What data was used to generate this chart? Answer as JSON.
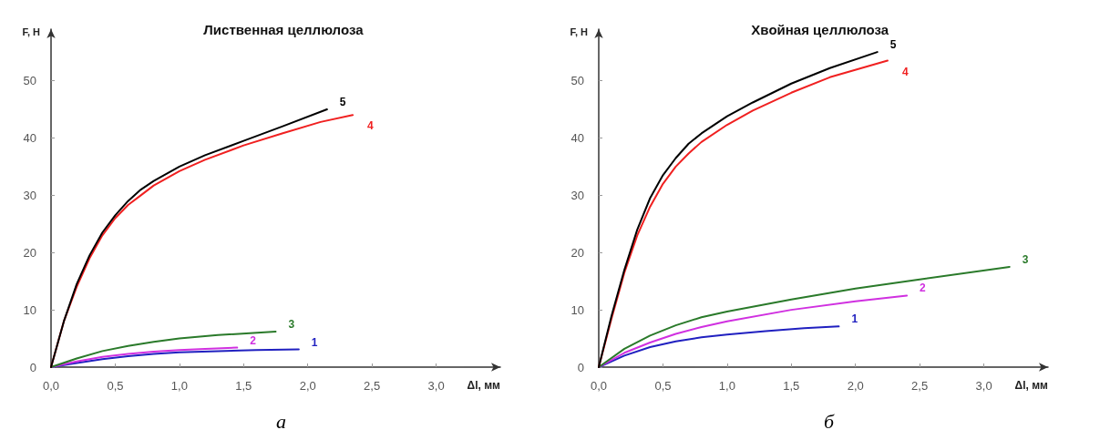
{
  "chart_data": [
    {
      "type": "line",
      "title": "Лиственная целлюлоза",
      "xlabel": "Δl, мм",
      "ylabel": "F, Н",
      "annotations": [
        "а"
      ],
      "xlim": [
        0,
        3.5
      ],
      "ylim": [
        0,
        59
      ],
      "xticks": [
        {
          "value": 0,
          "label": "0,0"
        },
        {
          "value": 0.5,
          "label": "0,5"
        },
        {
          "value": 1,
          "label": "1,0"
        },
        {
          "value": 1.5,
          "label": "1,5"
        },
        {
          "value": 2,
          "label": "2,0"
        },
        {
          "value": 2.5,
          "label": "2,5"
        },
        {
          "value": 3,
          "label": "3,0"
        }
      ],
      "yticks": [
        0,
        10,
        20,
        30,
        40,
        50
      ],
      "grid": false,
      "marker": "none",
      "line_style": "solid",
      "series": [
        {
          "name": "1",
          "color": "#2020c0",
          "x": [
            0,
            0.2,
            0.4,
            0.6,
            0.8,
            1.0,
            1.3,
            1.6,
            1.93
          ],
          "values": [
            0,
            0.7,
            1.4,
            1.9,
            2.3,
            2.6,
            2.8,
            3,
            3.1
          ]
        },
        {
          "name": "2",
          "color": "#d030e0",
          "x": [
            0,
            0.2,
            0.4,
            0.6,
            0.8,
            1.0,
            1.2,
            1.45
          ],
          "values": [
            0,
            1,
            1.8,
            2.3,
            2.7,
            3,
            3.2,
            3.4
          ]
        },
        {
          "name": "3",
          "color": "#2a7a2a",
          "x": [
            0,
            0.2,
            0.4,
            0.6,
            0.8,
            1.0,
            1.3,
            1.75
          ],
          "values": [
            0,
            1.5,
            2.8,
            3.7,
            4.4,
            5,
            5.6,
            6.2
          ]
        },
        {
          "name": "4",
          "color": "#f02020",
          "x": [
            0,
            0.1,
            0.2,
            0.3,
            0.4,
            0.5,
            0.6,
            0.7,
            0.8,
            1.0,
            1.2,
            1.5,
            1.8,
            2.1,
            2.35
          ],
          "values": [
            0,
            8,
            14,
            19,
            23,
            26,
            28.3,
            30,
            31.7,
            34.2,
            36.2,
            38.7,
            40.8,
            42.8,
            44
          ]
        },
        {
          "name": "5",
          "color": "#000000",
          "x": [
            0,
            0.1,
            0.2,
            0.3,
            0.4,
            0.5,
            0.6,
            0.7,
            0.8,
            1.0,
            1.2,
            1.5,
            1.8,
            2.15
          ],
          "values": [
            0,
            8,
            14.5,
            19.5,
            23.5,
            26.5,
            29,
            31,
            32.5,
            35,
            37,
            39.5,
            42,
            45
          ]
        }
      ]
    },
    {
      "type": "line",
      "title": "Хвойная целлюлоза",
      "xlabel": "Δl, мм",
      "ylabel": "F, Н",
      "annotations": [
        "б"
      ],
      "xlim": [
        0,
        3.5
      ],
      "ylim": [
        0,
        59
      ],
      "xticks": [
        {
          "value": 0,
          "label": "0,0"
        },
        {
          "value": 0.5,
          "label": "0,5"
        },
        {
          "value": 1,
          "label": "1,0"
        },
        {
          "value": 1.5,
          "label": "1,5"
        },
        {
          "value": 2,
          "label": "2,0"
        },
        {
          "value": 2.5,
          "label": "2,5"
        },
        {
          "value": 3,
          "label": "3,0"
        }
      ],
      "yticks": [
        0,
        10,
        20,
        30,
        40,
        50
      ],
      "grid": false,
      "marker": "none",
      "line_style": "solid",
      "series": [
        {
          "name": "1",
          "color": "#2020c0",
          "x": [
            0,
            0.2,
            0.4,
            0.6,
            0.8,
            1.0,
            1.3,
            1.6,
            1.87
          ],
          "values": [
            0,
            2,
            3.5,
            4.5,
            5.2,
            5.7,
            6.3,
            6.8,
            7.1
          ]
        },
        {
          "name": "2",
          "color": "#d030e0",
          "x": [
            0,
            0.2,
            0.4,
            0.6,
            0.8,
            1.0,
            1.5,
            2.0,
            2.4
          ],
          "values": [
            0,
            2.5,
            4.3,
            5.8,
            7,
            8,
            10,
            11.5,
            12.5
          ]
        },
        {
          "name": "3",
          "color": "#2a7a2a",
          "x": [
            0,
            0.2,
            0.4,
            0.6,
            0.8,
            1.0,
            1.5,
            2.0,
            2.5,
            3.2
          ],
          "values": [
            0,
            3.2,
            5.5,
            7.3,
            8.7,
            9.7,
            11.8,
            13.7,
            15.3,
            17.5
          ]
        },
        {
          "name": "4",
          "color": "#f02020",
          "x": [
            0,
            0.1,
            0.2,
            0.3,
            0.4,
            0.5,
            0.6,
            0.7,
            0.8,
            1.0,
            1.2,
            1.5,
            1.8,
            2.25
          ],
          "values": [
            0,
            8.5,
            16.5,
            23,
            28,
            32,
            35,
            37.3,
            39.3,
            42.3,
            44.8,
            47.9,
            50.6,
            53.5
          ]
        },
        {
          "name": "5",
          "color": "#000000",
          "x": [
            0,
            0.1,
            0.2,
            0.3,
            0.4,
            0.5,
            0.6,
            0.7,
            0.8,
            1.0,
            1.2,
            1.5,
            1.8,
            2.17
          ],
          "values": [
            0,
            9,
            17,
            24,
            29.5,
            33.5,
            36.5,
            39,
            40.8,
            43.8,
            46.2,
            49.5,
            52.2,
            55
          ]
        }
      ]
    }
  ]
}
